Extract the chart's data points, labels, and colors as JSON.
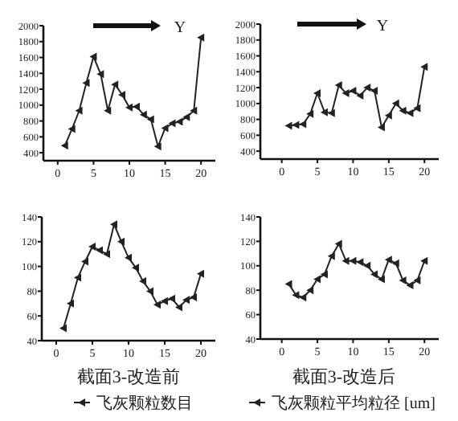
{
  "chart_data": [
    {
      "type": "line",
      "x": [
        1,
        2,
        3,
        4,
        5,
        6,
        7,
        8,
        9,
        10,
        11,
        12,
        13,
        14,
        15,
        16,
        17,
        18,
        19,
        20
      ],
      "series": [
        {
          "color": "#222222",
          "values": [
            490,
            700,
            930,
            1280,
            1610,
            1390,
            930,
            1260,
            1130,
            970,
            980,
            880,
            820,
            480,
            710,
            770,
            790,
            850,
            930,
            1850
          ]
        }
      ],
      "xlim": [
        -2,
        22
      ],
      "ylim": [
        300,
        2000
      ],
      "xticks": [
        0,
        5,
        10,
        15,
        20
      ],
      "yticks": [
        400,
        600,
        800,
        1000,
        1200,
        1400,
        1600,
        1800,
        2000
      ],
      "marker": "triangle",
      "annotations": [
        "Y"
      ]
    },
    {
      "type": "line",
      "x": [
        1,
        2,
        3,
        4,
        5,
        6,
        7,
        8,
        9,
        10,
        11,
        12,
        13,
        14,
        15,
        16,
        17,
        18,
        19,
        20
      ],
      "series": [
        {
          "color": "#222222",
          "values": [
            720,
            730,
            740,
            870,
            1130,
            890,
            880,
            1230,
            1130,
            1160,
            1100,
            1200,
            1160,
            700,
            850,
            1000,
            910,
            880,
            940,
            1460
          ]
        }
      ],
      "xlim": [
        -3,
        22
      ],
      "ylim": [
        300,
        2000
      ],
      "xticks": [
        0,
        5,
        10,
        15,
        20
      ],
      "yticks": [
        400,
        600,
        800,
        1000,
        1200,
        1400,
        1600,
        1800,
        2000
      ],
      "marker": "triangle",
      "annotations": [
        "Y"
      ]
    },
    {
      "type": "line",
      "x": [
        1,
        2,
        3,
        4,
        5,
        6,
        7,
        8,
        9,
        10,
        11,
        12,
        13,
        14,
        15,
        16,
        17,
        18,
        19,
        20
      ],
      "series": [
        {
          "name": "飞灰颗粒数目",
          "color": "#222222",
          "values": [
            50,
            70,
            91,
            104,
            116,
            113,
            110,
            134,
            120,
            107,
            99,
            88,
            80,
            69,
            72,
            74,
            67,
            73,
            75,
            94
          ]
        }
      ],
      "xlim": [
        -2,
        22
      ],
      "ylim": [
        40,
        140
      ],
      "xticks": [
        0,
        5,
        10,
        15,
        20
      ],
      "yticks": [
        40,
        60,
        80,
        100,
        120,
        140
      ],
      "marker": "triangle",
      "legend": "bottom",
      "annotations": [
        "截面3-改造前"
      ]
    },
    {
      "type": "line",
      "x": [
        1,
        2,
        3,
        4,
        5,
        6,
        7,
        8,
        9,
        10,
        11,
        12,
        13,
        14,
        15,
        16,
        17,
        18,
        19,
        20
      ],
      "series": [
        {
          "name": "飞灰颗粒平均粒径 [um]",
          "color": "#222222",
          "values": [
            85,
            76,
            74,
            80,
            89,
            93,
            108,
            118,
            104,
            104,
            103,
            100,
            93,
            89,
            105,
            102,
            88,
            84,
            88,
            104
          ]
        }
      ],
      "xlim": [
        -3,
        22
      ],
      "ylim": [
        40,
        140
      ],
      "xticks": [
        0,
        5,
        10,
        15,
        20
      ],
      "yticks": [
        40,
        60,
        80,
        100,
        120,
        140
      ],
      "marker": "triangle",
      "legend": "bottom",
      "annotations": [
        "截面3-改造后"
      ]
    }
  ]
}
